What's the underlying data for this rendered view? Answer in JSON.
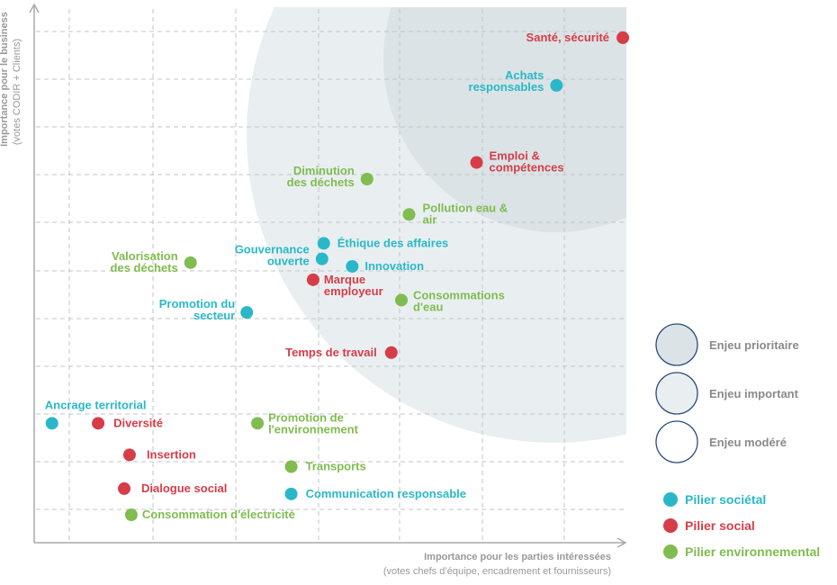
{
  "chart_data": {
    "type": "scatter",
    "title": "",
    "xlabel": "Importance pour les parties intéressées",
    "xlabel_sub": "(votes chefs d’équipe, encadrement et fournisseurs)",
    "ylabel": "Importance pour le business",
    "ylabel_sub": "(votes CODIR + Clients)",
    "xlim": [
      0,
      100
    ],
    "ylim": [
      0,
      100
    ],
    "grid": true,
    "colors": {
      "societal": "#2ab8c8",
      "social": "#d63d48",
      "environnemental": "#80bc50",
      "zone_prioritaire": "#dbe3e6",
      "zone_important": "#e9eff1",
      "legend_ring": "#2a4c7a"
    },
    "points": [
      {
        "label": "Santé, sécurité",
        "pillar": "social",
        "x": 99.4,
        "y": 94.3
      },
      {
        "label": "Achats responsables",
        "pillar": "societal",
        "x": 88.2,
        "y": 85.4
      },
      {
        "label": "Emploi & compétences",
        "pillar": "social",
        "x": 74.7,
        "y": 71.0
      },
      {
        "label": "Diminution des déchets",
        "pillar": "environnemental",
        "x": 56.2,
        "y": 67.9
      },
      {
        "label": "Pollution eau & air",
        "pillar": "environnemental",
        "x": 63.3,
        "y": 61.3
      },
      {
        "label": "Éthique des affaires",
        "pillar": "societal",
        "x": 48.9,
        "y": 55.9
      },
      {
        "label": "Gouvernance ouverte",
        "pillar": "societal",
        "x": 48.6,
        "y": 53.0
      },
      {
        "label": "Innovation",
        "pillar": "societal",
        "x": 53.7,
        "y": 51.6
      },
      {
        "label": "Marque employeur",
        "pillar": "social",
        "x": 47.1,
        "y": 49.1
      },
      {
        "label": "Valorisation des déchets",
        "pillar": "environnemental",
        "x": 26.4,
        "y": 52.3
      },
      {
        "label": "Consommations d'eau",
        "pillar": "environnemental",
        "x": 62.0,
        "y": 45.3
      },
      {
        "label": "Promotion du secteur",
        "pillar": "societal",
        "x": 35.9,
        "y": 43.0
      },
      {
        "label": "Temps de travail",
        "pillar": "social",
        "x": 60.3,
        "y": 35.5
      },
      {
        "label": "Ancrage territorial",
        "pillar": "societal",
        "x": 3.0,
        "y": 22.3
      },
      {
        "label": "Diversité",
        "pillar": "social",
        "x": 10.8,
        "y": 22.3
      },
      {
        "label": "Promotion de l'environnement",
        "pillar": "environnemental",
        "x": 37.7,
        "y": 22.3
      },
      {
        "label": "Insertion",
        "pillar": "social",
        "x": 16.1,
        "y": 16.4
      },
      {
        "label": "Transports",
        "pillar": "environnemental",
        "x": 43.4,
        "y": 14.2
      },
      {
        "label": "Dialogue social",
        "pillar": "social",
        "x": 15.2,
        "y": 10.1
      },
      {
        "label": "Communication responsable",
        "pillar": "societal",
        "x": 43.4,
        "y": 9.1
      },
      {
        "label": "Consommation d'électricité",
        "pillar": "environnemental",
        "x": 16.4,
        "y": 5.2
      }
    ],
    "legend_zones": [
      "Enjeu prioritaire",
      "Enjeu important",
      "Enjeu modéré"
    ],
    "legend_pillars": [
      {
        "label": "Pilier sociétal",
        "pillar": "societal"
      },
      {
        "label": "Pilier social",
        "pillar": "social"
      },
      {
        "label": "Pilier environnemental",
        "pillar": "environnemental"
      }
    ]
  }
}
